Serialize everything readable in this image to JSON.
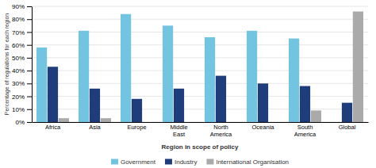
{
  "chart_data": {
    "type": "bar",
    "categories": [
      "Africa",
      "Asia",
      "Europe",
      "Middle\nEast",
      "North\nAmerica",
      "Oceania",
      "South\nAmerica",
      "Global"
    ],
    "series": [
      {
        "name": "Government",
        "color": "#72c4e0",
        "values": [
          58,
          71,
          84,
          75,
          66,
          71,
          65,
          0
        ]
      },
      {
        "name": "Industry",
        "color": "#1f3d7a",
        "values": [
          43,
          26,
          18,
          26,
          36,
          30,
          28,
          15
        ]
      },
      {
        "name": "International Organisation",
        "color": "#aaaaaa",
        "values": [
          3,
          3,
          0,
          0,
          0,
          0,
          9,
          86
        ]
      }
    ],
    "x_label": "Region in scope of policy",
    "y_label": "Percentage of regulations for each region",
    "ylim": [
      0,
      90
    ],
    "yticks": [
      {
        "value": 0,
        "label": "0%"
      },
      {
        "value": 10,
        "label": "10%"
      },
      {
        "value": 20,
        "label": "20%"
      },
      {
        "value": 30,
        "label": "30%"
      },
      {
        "value": 40,
        "label": "40%"
      },
      {
        "value": 50,
        "label": "50%"
      },
      {
        "value": 60,
        "label": "60%"
      },
      {
        "value": 70,
        "label": "70%"
      },
      {
        "value": 80,
        "label": "80%"
      },
      {
        "value": 90,
        "label": "90%"
      }
    ],
    "grid": true,
    "legend": "bottom"
  }
}
